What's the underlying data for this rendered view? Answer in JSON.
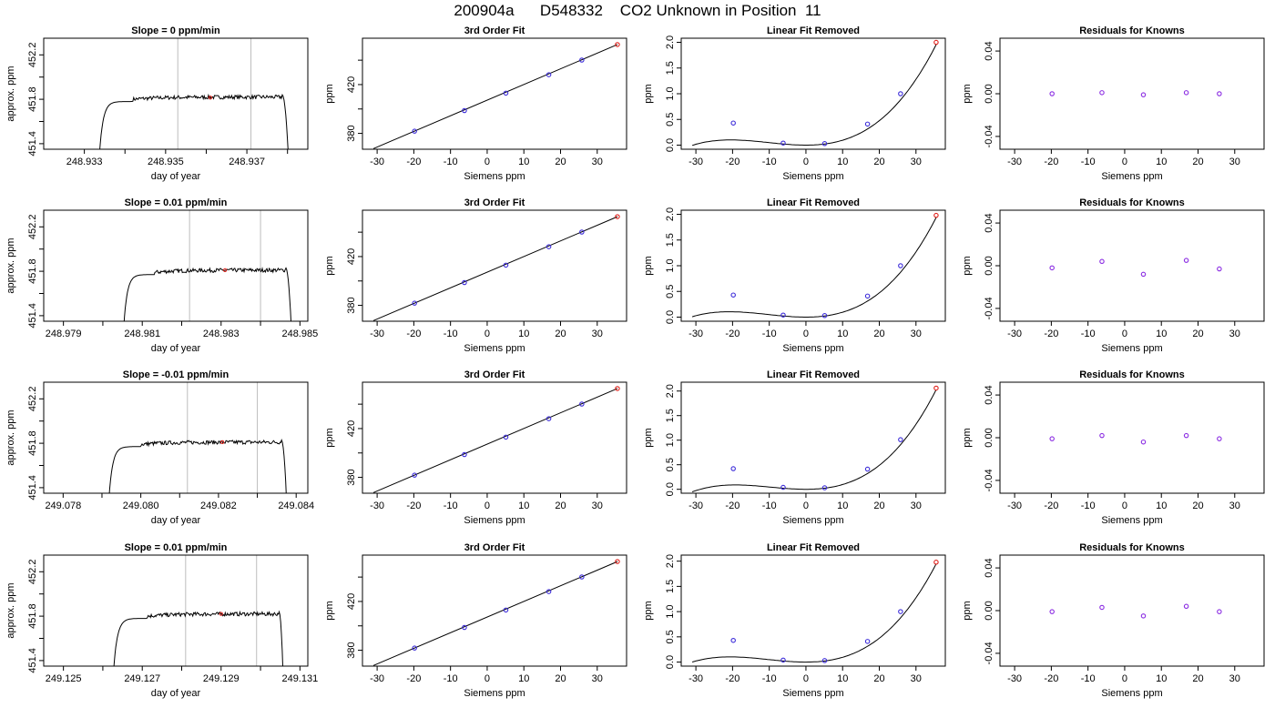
{
  "figure": {
    "title": "200904a      D548332    CO2 Unknown in Position  11"
  },
  "chart_data": [
    {
      "type": "line",
      "row": 1,
      "panel": "trace",
      "title": "Slope =  0  ppm/min",
      "xlabel": "day of year",
      "ylabel": "approx. ppm",
      "xlim": [
        248.932,
        248.9385
      ],
      "ylim": [
        451.35,
        452.35
      ],
      "xticks": [
        248.933,
        248.935,
        248.937
      ],
      "xminor": [
        248.934,
        248.936,
        248.938
      ],
      "yticks": [
        451.4,
        451.8,
        452.2
      ],
      "yminor": [
        451.6,
        452.0
      ],
      "vlines": [
        248.9353,
        248.9371
      ],
      "marker": {
        "x": 248.9361,
        "y": 451.815
      },
      "trace": {
        "x_start": 248.93337,
        "x_rise_end": 248.93418,
        "x_drop_start": 248.93787,
        "x_end": 248.93802,
        "level": 451.82,
        "base": 451.3
      }
    },
    {
      "type": "scatter",
      "row": 1,
      "panel": "fit",
      "title": "3rd Order Fit",
      "xlabel": "Siemens ppm",
      "ylabel": "ppm",
      "xlim": [
        -34,
        38
      ],
      "ylim": [
        367,
        458
      ],
      "xticks": [
        -30,
        -20,
        -10,
        0,
        10,
        20,
        30
      ],
      "yticks": [
        380,
        420
      ],
      "yminor": [
        400,
        440
      ],
      "known_x": [
        -19.8,
        -6.2,
        5.1,
        16.8,
        25.8
      ],
      "known_y": [
        381.8,
        398.7,
        413.0,
        428.1,
        440.1
      ],
      "unknown": {
        "x": 35.5,
        "y": 452.8
      },
      "fit_line": {
        "x": [
          -31,
          35.5
        ],
        "y": [
          367.5,
          452.8
        ]
      }
    },
    {
      "type": "scatter",
      "row": 1,
      "panel": "linear_removed",
      "title": "Linear Fit Removed",
      "xlabel": "Siemens ppm",
      "ylabel": "ppm",
      "xlim": [
        -34,
        38
      ],
      "ylim": [
        -0.08,
        2.08
      ],
      "xticks": [
        -30,
        -20,
        -10,
        0,
        10,
        20,
        30
      ],
      "yticks": [
        0.0,
        0.5,
        1.0,
        1.5,
        2.0
      ],
      "known_x": [
        -19.8,
        -6.2,
        5.1,
        16.8,
        25.8
      ],
      "known_y": [
        0.43,
        0.04,
        0.03,
        0.41,
        1.0
      ],
      "unknown": {
        "x": 35.5,
        "y": 2.0
      },
      "curve": {
        "x0": 0,
        "y0": 0.0,
        "a": 0.00072,
        "b": 2.34e-05,
        "x_range": [
          -31,
          35.5
        ]
      }
    },
    {
      "type": "scatter",
      "row": 1,
      "panel": "residuals",
      "title": "Residuals for Knowns",
      "xlabel": "Siemens ppm",
      "ylabel": "ppm",
      "xlim": [
        -34,
        38
      ],
      "ylim": [
        -0.052,
        0.052
      ],
      "xticks": [
        -30,
        -20,
        -10,
        0,
        10,
        20,
        30
      ],
      "yticks": [
        -0.04,
        0.0,
        0.04
      ],
      "known_x": [
        -19.8,
        -6.2,
        5.1,
        16.8,
        25.8
      ],
      "known_y": [
        0.0,
        0.001,
        -0.001,
        0.001,
        0.0
      ]
    },
    {
      "type": "line",
      "row": 2,
      "panel": "trace",
      "title": "Slope =  0.01  ppm/min",
      "xlabel": "day of year",
      "ylabel": "approx. ppm",
      "xlim": [
        248.9785,
        248.9852
      ],
      "ylim": [
        451.35,
        452.35
      ],
      "xticks": [
        248.979,
        248.981,
        248.983,
        248.985
      ],
      "xminor": [
        248.98,
        248.982,
        248.984
      ],
      "yticks": [
        451.4,
        451.8,
        452.2
      ],
      "yminor": [
        451.6,
        452.0
      ],
      "vlines": [
        248.9822,
        248.984
      ],
      "marker": {
        "x": 248.9831,
        "y": 451.81
      },
      "trace": {
        "x_start": 248.98053,
        "x_rise_end": 248.98132,
        "x_drop_start": 248.98464,
        "x_end": 248.98478,
        "level": 451.81,
        "base": 451.3
      }
    },
    {
      "type": "scatter",
      "row": 2,
      "panel": "fit",
      "title": "3rd Order Fit",
      "xlabel": "Siemens ppm",
      "ylabel": "ppm",
      "xlim": [
        -34,
        38
      ],
      "ylim": [
        367,
        458
      ],
      "xticks": [
        -30,
        -20,
        -10,
        0,
        10,
        20,
        30
      ],
      "yticks": [
        380,
        420
      ],
      "yminor": [
        400,
        440
      ],
      "known_x": [
        -19.8,
        -6.2,
        5.1,
        16.8,
        25.8
      ],
      "known_y": [
        381.8,
        398.7,
        413.0,
        428.1,
        440.1
      ],
      "unknown": {
        "x": 35.5,
        "y": 452.7
      },
      "fit_line": {
        "x": [
          -31,
          35.5
        ],
        "y": [
          367.5,
          452.7
        ]
      }
    },
    {
      "type": "scatter",
      "row": 2,
      "panel": "linear_removed",
      "title": "Linear Fit Removed",
      "xlabel": "Siemens ppm",
      "ylabel": "ppm",
      "xlim": [
        -34,
        38
      ],
      "ylim": [
        -0.08,
        2.08
      ],
      "xticks": [
        -30,
        -20,
        -10,
        0,
        10,
        20,
        30
      ],
      "yticks": [
        0.0,
        0.5,
        1.0,
        1.5,
        2.0
      ],
      "known_x": [
        -19.8,
        -6.2,
        5.1,
        16.8,
        25.8
      ],
      "known_y": [
        0.43,
        0.04,
        0.03,
        0.41,
        1.0
      ],
      "unknown": {
        "x": 35.5,
        "y": 1.98
      },
      "curve": {
        "x0": 0,
        "y0": 0.0,
        "a": 0.00072,
        "b": 2.3e-05,
        "x_range": [
          -31,
          35.5
        ]
      }
    },
    {
      "type": "scatter",
      "row": 2,
      "panel": "residuals",
      "title": "Residuals for Knowns",
      "xlabel": "Siemens ppm",
      "ylabel": "ppm",
      "xlim": [
        -34,
        38
      ],
      "ylim": [
        -0.052,
        0.052
      ],
      "xticks": [
        -30,
        -20,
        -10,
        0,
        10,
        20,
        30
      ],
      "yticks": [
        -0.04,
        0.0,
        0.04
      ],
      "known_x": [
        -19.8,
        -6.2,
        5.1,
        16.8,
        25.8
      ],
      "known_y": [
        -0.002,
        0.004,
        -0.008,
        0.005,
        -0.003
      ]
    },
    {
      "type": "line",
      "row": 3,
      "panel": "trace",
      "title": "Slope =  -0.01  ppm/min",
      "xlabel": "day of year",
      "ylabel": "approx. ppm",
      "xlim": [
        249.0775,
        249.0843
      ],
      "ylim": [
        451.35,
        452.35
      ],
      "xticks": [
        249.078,
        249.08,
        249.082,
        249.084
      ],
      "xminor": [
        249.079,
        249.081,
        249.083
      ],
      "yticks": [
        451.4,
        451.8,
        452.2
      ],
      "yminor": [
        451.6,
        452.0
      ],
      "vlines": [
        249.0812,
        249.083
      ],
      "marker": {
        "x": 249.0821,
        "y": 451.81
      },
      "trace": {
        "x_start": 249.07918,
        "x_rise_end": 249.08001,
        "x_drop_start": 249.08362,
        "x_end": 249.08375,
        "level": 451.81,
        "base": 451.3
      }
    },
    {
      "type": "scatter",
      "row": 3,
      "panel": "fit",
      "title": "3rd Order Fit",
      "xlabel": "Siemens ppm",
      "ylabel": "ppm",
      "xlim": [
        -34,
        38
      ],
      "ylim": [
        367,
        458
      ],
      "xticks": [
        -30,
        -20,
        -10,
        0,
        10,
        20,
        30
      ],
      "yticks": [
        380,
        420
      ],
      "yminor": [
        400,
        440
      ],
      "known_x": [
        -19.8,
        -6.2,
        5.1,
        16.8,
        25.8
      ],
      "known_y": [
        381.8,
        398.7,
        413.0,
        428.1,
        440.1
      ],
      "unknown": {
        "x": 35.5,
        "y": 452.8
      },
      "fit_line": {
        "x": [
          -31,
          35.5
        ],
        "y": [
          367.5,
          452.8
        ]
      }
    },
    {
      "type": "scatter",
      "row": 3,
      "panel": "linear_removed",
      "title": "Linear Fit Removed",
      "xlabel": "Siemens ppm",
      "ylabel": "ppm",
      "xlim": [
        -34,
        38
      ],
      "ylim": [
        -0.08,
        2.18
      ],
      "xticks": [
        -30,
        -20,
        -10,
        0,
        10,
        20,
        30
      ],
      "yticks": [
        0.0,
        0.5,
        1.0,
        1.5,
        2.0
      ],
      "known_x": [
        -19.8,
        -6.2,
        5.1,
        16.8,
        25.8
      ],
      "known_y": [
        0.42,
        0.04,
        0.03,
        0.41,
        1.01
      ],
      "unknown": {
        "x": 35.5,
        "y": 2.06
      },
      "curve": {
        "x0": 0,
        "y0": 0.0,
        "a": 0.00072,
        "b": 2.5e-05,
        "x_range": [
          -31,
          35.5
        ]
      }
    },
    {
      "type": "scatter",
      "row": 3,
      "panel": "residuals",
      "title": "Residuals for Knowns",
      "xlabel": "Siemens ppm",
      "ylabel": "ppm",
      "xlim": [
        -34,
        38
      ],
      "ylim": [
        -0.052,
        0.052
      ],
      "xticks": [
        -30,
        -20,
        -10,
        0,
        10,
        20,
        30
      ],
      "yticks": [
        -0.04,
        0.0,
        0.04
      ],
      "known_x": [
        -19.8,
        -6.2,
        5.1,
        16.8,
        25.8
      ],
      "known_y": [
        -0.001,
        0.002,
        -0.004,
        0.002,
        -0.001
      ]
    },
    {
      "type": "line",
      "row": 4,
      "panel": "trace",
      "title": "Slope =  0.01  ppm/min",
      "xlabel": "day of year",
      "ylabel": "approx. ppm",
      "xlim": [
        249.1245,
        249.1312
      ],
      "ylim": [
        451.35,
        452.35
      ],
      "xticks": [
        249.125,
        249.127,
        249.129,
        249.131
      ],
      "xminor": [
        249.126,
        249.128,
        249.13
      ],
      "yticks": [
        451.4,
        451.8,
        452.2
      ],
      "yminor": [
        451.6,
        452.0
      ],
      "vlines": [
        249.1281,
        249.1299
      ],
      "marker": {
        "x": 249.129,
        "y": 451.82
      },
      "trace": {
        "x_start": 249.12627,
        "x_rise_end": 249.12713,
        "x_drop_start": 249.13047,
        "x_end": 249.13057,
        "level": 451.82,
        "base": 451.3
      }
    },
    {
      "type": "scatter",
      "row": 4,
      "panel": "fit",
      "title": "3rd Order Fit",
      "xlabel": "Siemens ppm",
      "ylabel": "ppm",
      "xlim": [
        -34,
        38
      ],
      "ylim": [
        367,
        458
      ],
      "xticks": [
        -30,
        -20,
        -10,
        0,
        10,
        20,
        30
      ],
      "yticks": [
        380,
        420
      ],
      "yminor": [
        400,
        440
      ],
      "known_x": [
        -19.8,
        -6.2,
        5.1,
        16.8,
        25.8
      ],
      "known_y": [
        381.8,
        398.7,
        413.0,
        428.1,
        440.1
      ],
      "unknown": {
        "x": 35.5,
        "y": 452.7
      },
      "fit_line": {
        "x": [
          -31,
          35.5
        ],
        "y": [
          367.5,
          452.7
        ]
      }
    },
    {
      "type": "scatter",
      "row": 4,
      "panel": "linear_removed",
      "title": "Linear Fit Removed",
      "xlabel": "Siemens ppm",
      "ylabel": "ppm",
      "xlim": [
        -34,
        38
      ],
      "ylim": [
        -0.08,
        2.12
      ],
      "xticks": [
        -30,
        -20,
        -10,
        0,
        10,
        20,
        30
      ],
      "yticks": [
        0.0,
        0.5,
        1.0,
        1.5,
        2.0
      ],
      "known_x": [
        -19.8,
        -6.2,
        5.1,
        16.8,
        25.8
      ],
      "known_y": [
        0.43,
        0.04,
        0.03,
        0.41,
        1.0
      ],
      "unknown": {
        "x": 35.5,
        "y": 1.98
      },
      "curve": {
        "x0": 0,
        "y0": 0.0,
        "a": 0.00072,
        "b": 2.32e-05,
        "x_range": [
          -31,
          35.5
        ]
      }
    },
    {
      "type": "scatter",
      "row": 4,
      "panel": "residuals",
      "title": "Residuals for Knowns",
      "xlabel": "Siemens ppm",
      "ylabel": "ppm",
      "xlim": [
        -34,
        38
      ],
      "ylim": [
        -0.052,
        0.052
      ],
      "xticks": [
        -30,
        -20,
        -10,
        0,
        10,
        20,
        30
      ],
      "yticks": [
        -0.04,
        0.0,
        0.04
      ],
      "known_x": [
        -19.8,
        -6.2,
        5.1,
        16.8,
        25.8
      ],
      "known_y": [
        -0.001,
        0.003,
        -0.005,
        0.004,
        -0.001
      ]
    }
  ],
  "colors": {
    "known_marker": "#3b2bd9",
    "known_marker_residual": "#8a2be2",
    "unknown_marker": "#e0201a",
    "vline": "#bdbdbd",
    "line": "#000000"
  }
}
